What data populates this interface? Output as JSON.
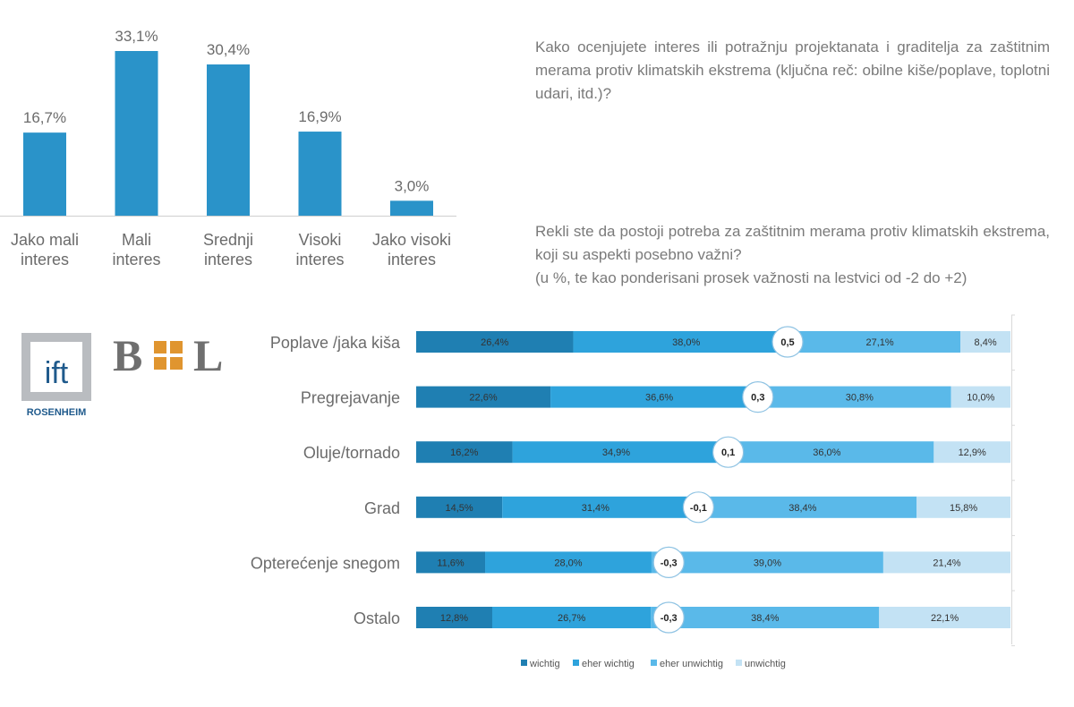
{
  "question1": "Kako ocenjujete interes ili potražnju projektanata i graditelja za zaštitnim merama protiv klimatskih ekstrema (ključna reč: obilne kiše/poplave, toplotni udari, itd.)?",
  "question2": {
    "text": "Rekli ste da postoji potreba za zaštitnim merama protiv klimatskih ekstrema, koji su aspekti posebno važni?",
    "note": "(u %, te kao ponderisani prosek važnosti na lestvici od -2 do +2)"
  },
  "logos": {
    "ift": {
      "text": "ift",
      "subtext": "ROSENHEIM"
    },
    "bl": {
      "text_left": "B",
      "text_right": "L"
    }
  },
  "colors": {
    "bar": "#2a93c9",
    "wichtig": "#1f7fb2",
    "eher_wichtig": "#2ea3dc",
    "eher_unwichtig": "#5ab9e9",
    "unwichtig": "#c3e2f4"
  },
  "chart_data": [
    {
      "type": "bar",
      "categories": [
        "Jako mali interes",
        "Mali interes",
        "Srednji interes",
        "Visoki interes",
        "Jako visoki interes"
      ],
      "values": [
        16.7,
        33.1,
        30.4,
        16.9,
        3.0
      ],
      "value_labels": [
        "16,7%",
        "33,1%",
        "30,4%",
        "16,9%",
        "3,0%"
      ],
      "ylim": [
        0,
        35
      ],
      "grid": false
    },
    {
      "type": "bar",
      "orientation": "horizontal",
      "stacked": true,
      "categories": [
        "Poplave /jaka kiša",
        "Pregrejavanje",
        "Oluje/tornado",
        "Grad",
        "Opterećenje snegom",
        "Ostalo"
      ],
      "series": [
        {
          "name": "wichtig",
          "values": [
            26.4,
            22.6,
            16.2,
            14.5,
            11.6,
            12.8
          ],
          "labels": [
            "26,4%",
            "22,6%",
            "16,2%",
            "14,5%",
            "11,6%",
            "12,8%"
          ]
        },
        {
          "name": "eher wichtig",
          "values": [
            38.0,
            36.6,
            34.9,
            31.4,
            28.0,
            26.7
          ],
          "labels": [
            "38,0%",
            "36,6%",
            "34,9%",
            "31,4%",
            "28,0%",
            "26,7%"
          ]
        },
        {
          "name": "eher unwichtig",
          "values": [
            27.1,
            30.8,
            36.0,
            38.4,
            39.0,
            38.4
          ],
          "labels": [
            "27,1%",
            "30,8%",
            "36,0%",
            "38,4%",
            "39,0%",
            "38,4%"
          ]
        },
        {
          "name": "unwichtig",
          "values": [
            8.4,
            10.0,
            12.9,
            15.8,
            21.4,
            22.1
          ],
          "labels": [
            "8,4%",
            "10,0%",
            "12,9%",
            "15,8%",
            "21,4%",
            "22,1%"
          ]
        }
      ],
      "weighted_average": [
        0.5,
        0.3,
        0.1,
        -0.1,
        -0.3,
        -0.3
      ],
      "weighted_average_labels": [
        "0,5",
        "0,3",
        "0,1",
        "-0,1",
        "-0,3",
        "-0,3"
      ],
      "average_scale": [
        -2,
        2
      ],
      "xlim": [
        0,
        100
      ],
      "legend_position": "bottom"
    }
  ]
}
